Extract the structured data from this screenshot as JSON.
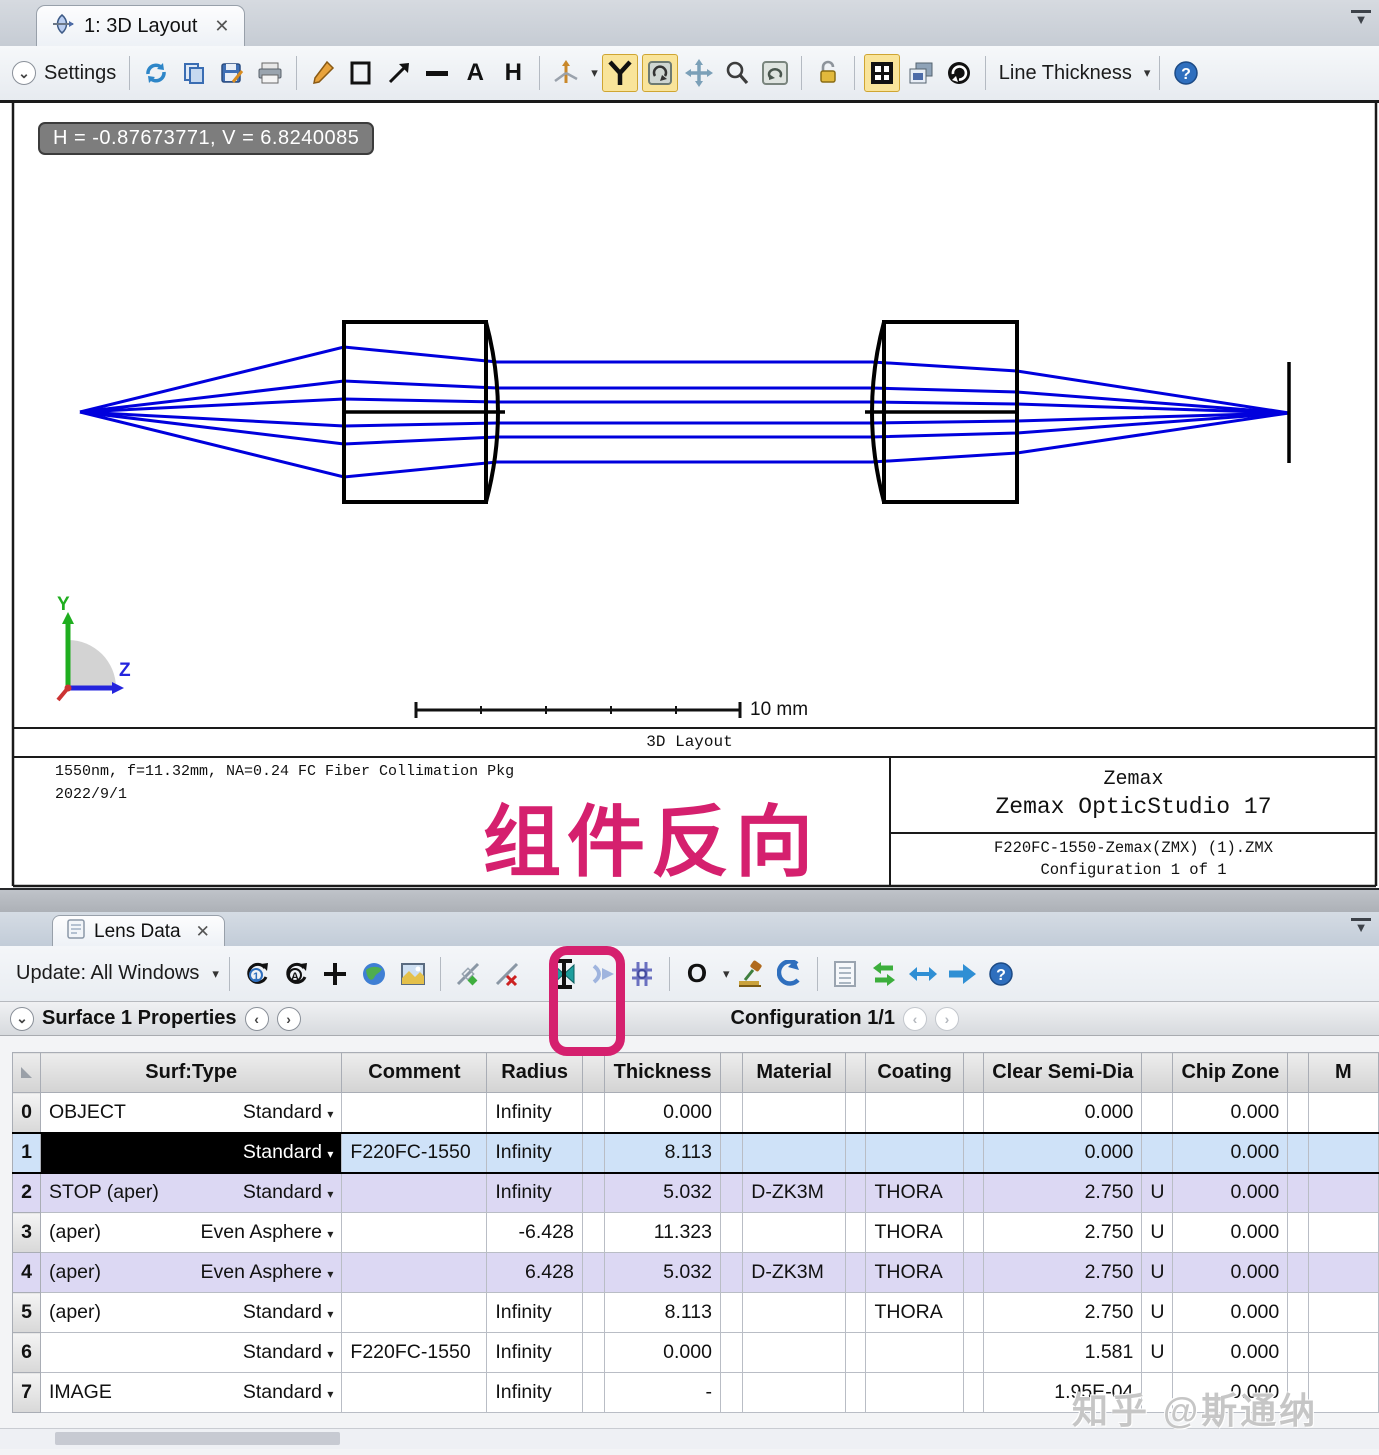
{
  "glyphs": {
    "chevron_down": "⌄",
    "close": "✕",
    "flyout": "▼",
    "dropdown": "▾",
    "prev": "‹",
    "next": "›",
    "help": "?",
    "aperture": "O",
    "text_tool": "A",
    "h_tool": "H"
  },
  "top": {
    "tab_title": "1: 3D Layout",
    "settings": "Settings",
    "line_thickness": "Line Thickness"
  },
  "layout": {
    "tooltip": "H = -0.87673771, V = 6.8240085",
    "scale_label": "10 mm",
    "title": "3D Layout",
    "note1": "1550nm, f=11.32mm, NA=0.24 FC Fiber Collimation Pkg",
    "note2": "2022/9/1",
    "brand1": "Zemax",
    "brand2": "Zemax OpticStudio 17",
    "file": "F220FC-1550-Zemax(ZMX) (1).ZMX",
    "config": "Configuration 1 of 1",
    "axis_y": "Y",
    "axis_z": "Z"
  },
  "annotation": {
    "text": "组件反向",
    "color": "#d5206e"
  },
  "lens": {
    "tab_title": "Lens Data",
    "update_label": "Update: All Windows",
    "properties_label": "Surface 1 Properties",
    "config_label": "Configuration 1/1",
    "table": {
      "columns": [
        "Surf:Type",
        "Comment",
        "Radius",
        "Thickness",
        "Material",
        "Coating",
        "Clear Semi-Dia",
        "Chip Zone",
        "M"
      ],
      "rows": [
        {
          "num": "0",
          "name": "OBJECT",
          "type": "Standard",
          "comment": "",
          "radius": "Infinity",
          "thickness": "0.000",
          "material": "",
          "coating": "",
          "csd": "0.000",
          "u": "",
          "chip": "0.000",
          "state": ""
        },
        {
          "num": "1",
          "name": "",
          "type": "Standard",
          "comment": "F220FC-1550",
          "radius": "Infinity",
          "thickness": "8.113",
          "material": "",
          "coating": "",
          "csd": "0.000",
          "u": "",
          "chip": "0.000",
          "state": "sel"
        },
        {
          "num": "2",
          "name": "STOP (aper)",
          "type": "Standard",
          "comment": "",
          "radius": "Infinity",
          "thickness": "5.032",
          "material": "D-ZK3M",
          "coating": "THORA",
          "csd": "2.750",
          "u": "U",
          "chip": "0.000",
          "state": "shaded"
        },
        {
          "num": "3",
          "name": "(aper)",
          "type": "Even Asphere",
          "comment": "",
          "radius": "-6.428",
          "thickness": "11.323",
          "material": "",
          "coating": "THORA",
          "csd": "2.750",
          "u": "U",
          "chip": "0.000",
          "state": ""
        },
        {
          "num": "4",
          "name": "(aper)",
          "type": "Even Asphere",
          "comment": "",
          "radius": "6.428",
          "thickness": "5.032",
          "material": "D-ZK3M",
          "coating": "THORA",
          "csd": "2.750",
          "u": "U",
          "chip": "0.000",
          "state": "shaded"
        },
        {
          "num": "5",
          "name": "(aper)",
          "type": "Standard",
          "comment": "",
          "radius": "Infinity",
          "thickness": "8.113",
          "material": "",
          "coating": "THORA",
          "csd": "2.750",
          "u": "U",
          "chip": "0.000",
          "state": ""
        },
        {
          "num": "6",
          "name": "",
          "type": "Standard",
          "comment": "F220FC-1550",
          "radius": "Infinity",
          "thickness": "0.000",
          "material": "",
          "coating": "",
          "csd": "1.581",
          "u": "U",
          "chip": "0.000",
          "state": ""
        },
        {
          "num": "7",
          "name": "IMAGE",
          "type": "Standard",
          "comment": "",
          "radius": "Infinity",
          "thickness": "-",
          "material": "",
          "coating": "",
          "csd": "1.95E-04",
          "u": "",
          "chip": "0.000",
          "state": ""
        }
      ]
    }
  },
  "watermark": {
    "text": "知乎 @斯通纳"
  }
}
